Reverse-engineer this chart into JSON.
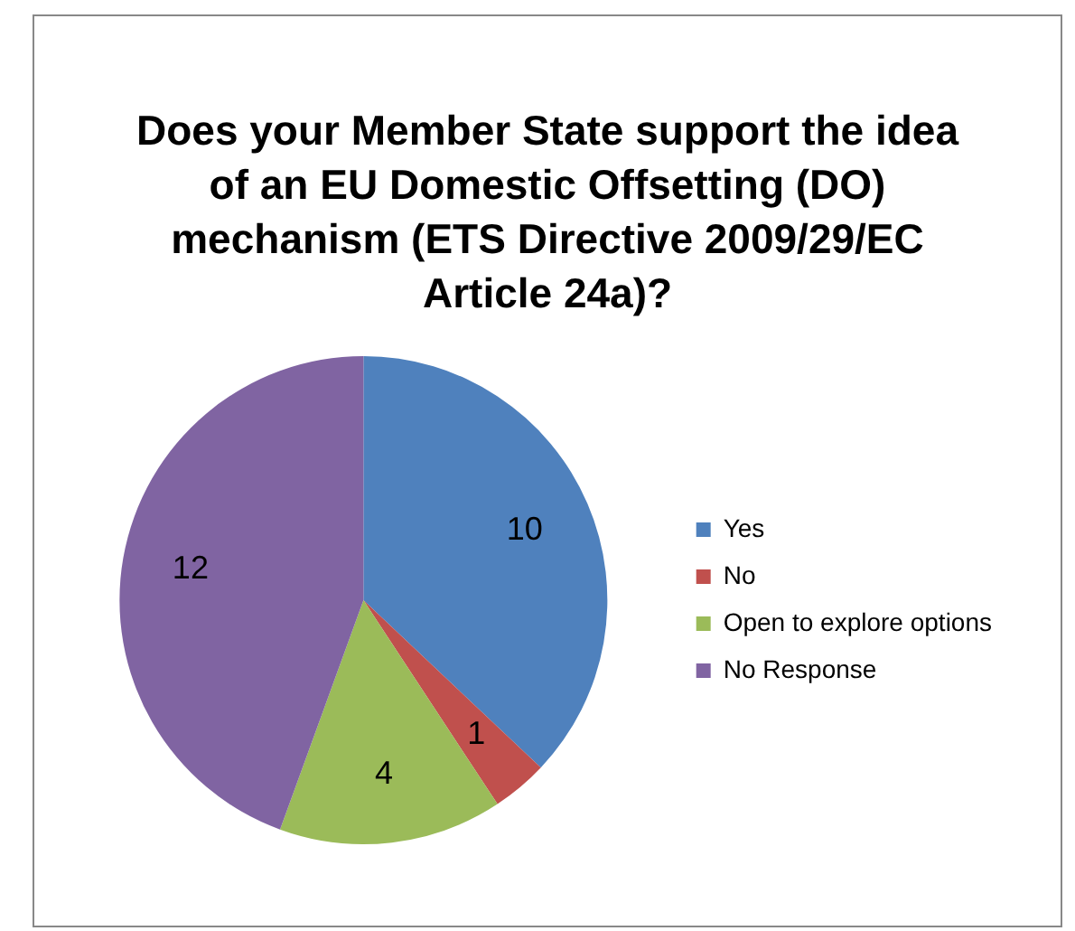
{
  "chart_data": {
    "type": "pie",
    "title": "Does your Member State support the idea of an EU Domestic Offsetting  (DO) mechanism (ETS Directive 2009/29/EC  Article 24a)?",
    "categories": [
      "Yes",
      "No",
      "Open to explore options",
      "No Response"
    ],
    "values": [
      10,
      1,
      4,
      12
    ],
    "colors": [
      "#4f81bd",
      "#c0504d",
      "#9bbb59",
      "#8064a2"
    ],
    "data_labels": true,
    "legend": "right"
  }
}
